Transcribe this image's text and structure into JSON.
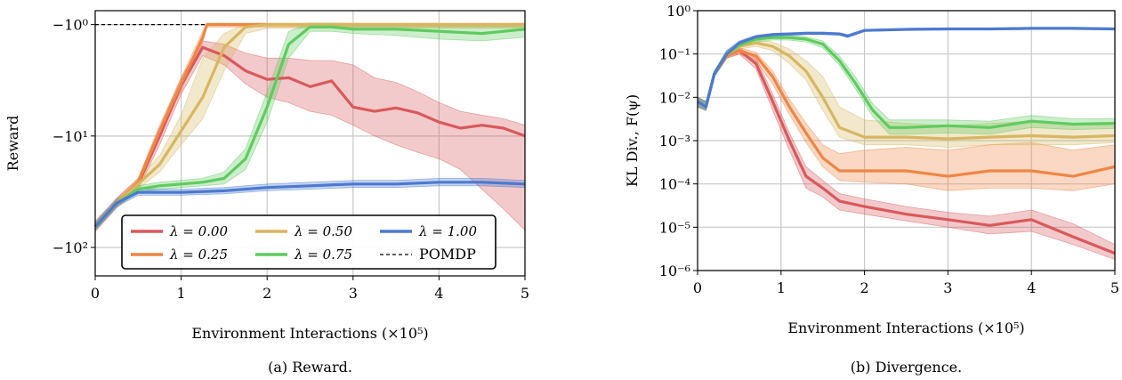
{
  "colors": {
    "0.00": "#d9595c",
    "0.25": "#ee8644",
    "0.50": "#d8b661",
    "0.75": "#5fcb5f",
    "1.00": "#4c79d0",
    "pomdp": "#000000",
    "grid": "#c8c8c8"
  },
  "chart_data": [
    {
      "type": "line",
      "caption": "(a) Reward.",
      "xlabel": "Environment Interactions (×10⁵)",
      "ylabel": "Reward",
      "yscale": "symlog-negative",
      "xlim": [
        0,
        5
      ],
      "ylim": [
        -180,
        -0.75
      ],
      "x_ticks": [
        "0",
        "1",
        "2",
        "3",
        "4",
        "5"
      ],
      "y_ticks": [
        "−10⁰",
        "−10¹",
        "−10²"
      ],
      "legend_position": "lower-center",
      "legend": [
        "λ = 0.00",
        "λ = 0.25",
        "λ = 0.50",
        "λ = 0.75",
        "λ = 1.00",
        "POMDP"
      ],
      "reference_line": {
        "name": "POMDP",
        "value": -1.0,
        "style": "dashed"
      },
      "series": [
        {
          "name": "λ = 0.00",
          "key": "0.00",
          "x": [
            0,
            0.25,
            0.5,
            0.75,
            1.0,
            1.25,
            1.5,
            1.75,
            2.0,
            2.25,
            2.5,
            2.75,
            3.0,
            3.25,
            3.5,
            3.75,
            4.0,
            4.25,
            4.5,
            4.75,
            5.0
          ],
          "y": [
            -65,
            -40,
            -27,
            -10,
            -3.5,
            -1.6,
            -1.9,
            -2.6,
            -3.1,
            -3.0,
            -3.6,
            -3.2,
            -5.5,
            -6.0,
            -5.6,
            -6.2,
            -7.5,
            -8.5,
            -8.0,
            -8.5,
            -10
          ],
          "upper": [
            -58,
            -36,
            -24,
            -8.5,
            -3.0,
            -1.4,
            -1.5,
            -1.8,
            -2.0,
            -2.0,
            -2.1,
            -2.1,
            -2.3,
            -3.0,
            -3.3,
            -4.0,
            -5.0,
            -6.0,
            -6.5,
            -7.0,
            -8.0
          ],
          "lower": [
            -72,
            -44,
            -30,
            -12,
            -4.2,
            -1.9,
            -2.3,
            -3.4,
            -4.5,
            -5.0,
            -6.0,
            -6.5,
            -8.0,
            -10,
            -12,
            -14,
            -16,
            -20,
            -30,
            -45,
            -70
          ]
        },
        {
          "name": "λ = 0.25",
          "key": "0.25",
          "x": [
            0,
            0.25,
            0.5,
            0.75,
            1.0,
            1.25,
            1.3,
            1.5,
            2.0,
            2.5,
            3.0,
            3.5,
            4.0,
            4.5,
            5.0
          ],
          "y": [
            -65,
            -40,
            -26,
            -9.0,
            -3.4,
            -1.3,
            -1.0,
            -1.0,
            -1.0,
            -1.0,
            -1.0,
            -1.0,
            -1.0,
            -1.0,
            -1.0
          ],
          "upper": [
            -60,
            -37,
            -24,
            -8.0,
            -3.0,
            -1.15,
            -0.97,
            -0.97,
            -0.97,
            -0.97,
            -0.97,
            -0.97,
            -0.97,
            -0.97,
            -0.97
          ],
          "lower": [
            -70,
            -43,
            -28,
            -10,
            -3.9,
            -1.45,
            -1.05,
            -1.05,
            -1.05,
            -1.05,
            -1.05,
            -1.05,
            -1.05,
            -1.05,
            -1.05
          ]
        },
        {
          "name": "λ = 0.50",
          "key": "0.50",
          "x": [
            0,
            0.25,
            0.5,
            0.75,
            1.0,
            1.25,
            1.5,
            1.75,
            2.0,
            2.5,
            3.0,
            3.5,
            4.0,
            4.5,
            5.0
          ],
          "y": [
            -65,
            -40,
            -27,
            -18,
            -9.0,
            -4.5,
            -1.6,
            -1.05,
            -1.0,
            -1.0,
            -1.0,
            -1.0,
            -1.0,
            -1.0,
            -1.0
          ],
          "upper": [
            -60,
            -37,
            -24,
            -15,
            -6.5,
            -2.0,
            -1.2,
            -0.98,
            -0.97,
            -0.97,
            -0.97,
            -0.97,
            -0.97,
            -0.97,
            -0.97
          ],
          "lower": [
            -70,
            -43,
            -30,
            -21,
            -12,
            -7.0,
            -2.6,
            -1.2,
            -1.08,
            -1.08,
            -1.08,
            -1.08,
            -1.08,
            -1.08,
            -1.08
          ]
        },
        {
          "name": "λ = 0.75",
          "key": "0.75",
          "x": [
            0,
            0.25,
            0.5,
            0.75,
            1.0,
            1.25,
            1.5,
            1.75,
            2.0,
            2.25,
            2.5,
            2.75,
            3.0,
            3.5,
            4.0,
            4.5,
            5.0
          ],
          "y": [
            -65,
            -40,
            -30,
            -28,
            -27,
            -26,
            -24,
            -16,
            -5.5,
            -1.5,
            -1.05,
            -1.05,
            -1.1,
            -1.1,
            -1.15,
            -1.2,
            -1.1
          ],
          "upper": [
            -60,
            -37,
            -28,
            -26,
            -25,
            -24,
            -21,
            -13,
            -4.0,
            -1.15,
            -0.97,
            -0.97,
            -0.98,
            -0.98,
            -0.98,
            -1.0,
            -0.98
          ],
          "lower": [
            -70,
            -43,
            -32,
            -30,
            -29,
            -28,
            -27,
            -20,
            -7.5,
            -2.0,
            -1.15,
            -1.15,
            -1.2,
            -1.25,
            -1.35,
            -1.4,
            -1.3
          ]
        },
        {
          "name": "λ = 1.00",
          "key": "1.00",
          "x": [
            0,
            0.25,
            0.5,
            0.75,
            1.0,
            1.5,
            2.0,
            2.5,
            3.0,
            3.5,
            4.0,
            4.5,
            5.0
          ],
          "y": [
            -65,
            -40,
            -32,
            -32,
            -32,
            -31,
            -29,
            -28,
            -27,
            -27,
            -26,
            -26,
            -27
          ],
          "upper": [
            -60,
            -37,
            -30,
            -30,
            -30,
            -29,
            -27,
            -26,
            -25,
            -25,
            -24,
            -24,
            -25
          ],
          "lower": [
            -70,
            -43,
            -34,
            -34,
            -34,
            -33,
            -31,
            -30,
            -29,
            -29,
            -28,
            -28,
            -29
          ]
        }
      ]
    },
    {
      "type": "line",
      "caption": "(b) Divergence.",
      "xlabel": "Environment Interactions (×10⁵)",
      "ylabel": "KL Div., F(ψ)",
      "yscale": "log",
      "xlim": [
        0,
        5
      ],
      "ylim": [
        1e-06,
        1
      ],
      "x_ticks": [
        "0",
        "1",
        "2",
        "3",
        "4",
        "5"
      ],
      "y_ticks": [
        "10⁰",
        "10⁻¹",
        "10⁻²",
        "10⁻³",
        "10⁻⁴",
        "10⁻⁵",
        "10⁻⁶"
      ],
      "series": [
        {
          "name": "λ = 0.00",
          "key": "0.00",
          "x": [
            0,
            0.1,
            0.2,
            0.35,
            0.5,
            0.7,
            0.9,
            1.1,
            1.3,
            1.5,
            1.7,
            2.0,
            2.5,
            3.0,
            3.5,
            4.0,
            4.5,
            5.0
          ],
          "y": [
            0.008,
            0.006,
            0.035,
            0.09,
            0.12,
            0.06,
            0.008,
            0.001,
            0.00015,
            8e-05,
            4e-05,
            3e-05,
            2e-05,
            1.5e-05,
            1.1e-05,
            1.5e-05,
            6e-06,
            2.5e-06
          ],
          "upper": [
            0.01,
            0.008,
            0.04,
            0.1,
            0.14,
            0.08,
            0.012,
            0.0015,
            0.00025,
            0.00012,
            6e-05,
            4.5e-05,
            3e-05,
            2.2e-05,
            1.8e-05,
            2.5e-05,
            1.2e-05,
            4e-06
          ],
          "lower": [
            0.006,
            0.005,
            0.03,
            0.08,
            0.1,
            0.045,
            0.005,
            0.0006,
            8e-05,
            5e-05,
            2.5e-05,
            2e-05,
            1.4e-05,
            1e-05,
            7e-06,
            8e-06,
            4e-06,
            1.8e-06
          ]
        },
        {
          "name": "λ = 0.25",
          "key": "0.25",
          "x": [
            0,
            0.1,
            0.2,
            0.35,
            0.5,
            0.7,
            0.9,
            1.1,
            1.3,
            1.5,
            1.7,
            2.0,
            2.5,
            3.0,
            3.5,
            4.0,
            4.5,
            5.0
          ],
          "y": [
            0.008,
            0.006,
            0.035,
            0.09,
            0.12,
            0.09,
            0.03,
            0.006,
            0.0015,
            0.0004,
            0.0002,
            0.0002,
            0.0002,
            0.00015,
            0.0002,
            0.0002,
            0.00015,
            0.00025
          ],
          "upper": [
            0.01,
            0.008,
            0.04,
            0.1,
            0.14,
            0.11,
            0.04,
            0.009,
            0.0025,
            0.0008,
            0.0005,
            0.0006,
            0.0007,
            0.0006,
            0.0008,
            0.0009,
            0.0006,
            0.0008
          ],
          "lower": [
            0.006,
            0.005,
            0.03,
            0.08,
            0.1,
            0.07,
            0.02,
            0.004,
            0.0009,
            0.00025,
            0.00012,
            0.00011,
            0.0001,
            7e-05,
            8e-05,
            8e-05,
            7e-05,
            0.0001
          ]
        },
        {
          "name": "λ = 0.50",
          "key": "0.50",
          "x": [
            0,
            0.1,
            0.2,
            0.35,
            0.5,
            0.7,
            0.9,
            1.1,
            1.3,
            1.5,
            1.7,
            2.0,
            2.5,
            3.0,
            3.5,
            4.0,
            4.5,
            5.0
          ],
          "y": [
            0.008,
            0.006,
            0.035,
            0.1,
            0.15,
            0.18,
            0.15,
            0.09,
            0.04,
            0.01,
            0.002,
            0.0012,
            0.0012,
            0.0011,
            0.0012,
            0.0013,
            0.0012,
            0.0013
          ],
          "upper": [
            0.01,
            0.008,
            0.04,
            0.12,
            0.17,
            0.21,
            0.19,
            0.13,
            0.07,
            0.03,
            0.006,
            0.003,
            0.0025,
            0.0022,
            0.0025,
            0.0028,
            0.0024,
            0.0026
          ],
          "lower": [
            0.006,
            0.005,
            0.03,
            0.08,
            0.13,
            0.15,
            0.12,
            0.06,
            0.025,
            0.005,
            0.0012,
            0.0008,
            0.0008,
            0.0007,
            0.0008,
            0.0008,
            0.0008,
            0.0009
          ]
        },
        {
          "name": "λ = 0.75",
          "key": "0.75",
          "x": [
            0,
            0.1,
            0.2,
            0.35,
            0.5,
            0.7,
            0.9,
            1.1,
            1.3,
            1.5,
            1.7,
            1.9,
            2.1,
            2.3,
            2.5,
            3.0,
            3.5,
            4.0,
            4.5,
            5.0
          ],
          "y": [
            0.008,
            0.006,
            0.035,
            0.1,
            0.16,
            0.22,
            0.24,
            0.24,
            0.22,
            0.17,
            0.07,
            0.02,
            0.005,
            0.002,
            0.002,
            0.0022,
            0.002,
            0.0028,
            0.0024,
            0.0025
          ],
          "upper": [
            0.01,
            0.008,
            0.04,
            0.12,
            0.18,
            0.25,
            0.27,
            0.27,
            0.25,
            0.2,
            0.09,
            0.028,
            0.007,
            0.003,
            0.003,
            0.003,
            0.0028,
            0.0038,
            0.0032,
            0.0032
          ],
          "lower": [
            0.006,
            0.005,
            0.03,
            0.08,
            0.14,
            0.19,
            0.21,
            0.21,
            0.19,
            0.14,
            0.055,
            0.015,
            0.0036,
            0.0014,
            0.0014,
            0.0015,
            0.0014,
            0.002,
            0.0018,
            0.0019
          ]
        },
        {
          "name": "λ = 1.00",
          "key": "1.00",
          "x": [
            0,
            0.1,
            0.2,
            0.35,
            0.5,
            0.7,
            0.9,
            1.1,
            1.3,
            1.5,
            1.7,
            1.8,
            2.0,
            2.5,
            3.0,
            3.5,
            4.0,
            4.5,
            5.0
          ],
          "y": [
            0.008,
            0.006,
            0.035,
            0.1,
            0.18,
            0.25,
            0.28,
            0.29,
            0.3,
            0.3,
            0.29,
            0.26,
            0.35,
            0.37,
            0.38,
            0.38,
            0.39,
            0.39,
            0.38
          ],
          "upper": [
            0.01,
            0.008,
            0.04,
            0.12,
            0.2,
            0.27,
            0.3,
            0.31,
            0.32,
            0.32,
            0.31,
            0.28,
            0.37,
            0.39,
            0.4,
            0.4,
            0.41,
            0.41,
            0.4
          ],
          "lower": [
            0.006,
            0.005,
            0.03,
            0.08,
            0.16,
            0.23,
            0.26,
            0.27,
            0.28,
            0.28,
            0.27,
            0.24,
            0.33,
            0.35,
            0.36,
            0.36,
            0.37,
            0.37,
            0.36
          ]
        }
      ]
    }
  ]
}
